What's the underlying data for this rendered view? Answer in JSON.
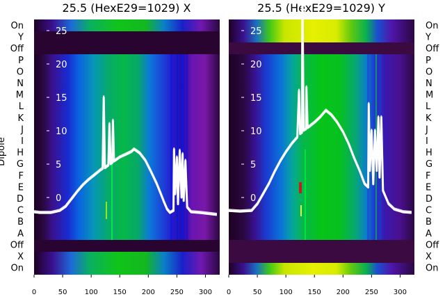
{
  "chart_data": [
    {
      "type": "heatmap",
      "title": "25.5 (HexE29=1029) X",
      "ylabel": "Dipole",
      "xticks": [
        0,
        50,
        100,
        150,
        200,
        250,
        300
      ],
      "xlim": [
        0,
        325
      ],
      "yticks": [
        0,
        5,
        10,
        15,
        20,
        25
      ],
      "ylim": [
        -11.5,
        28
      ],
      "dipole_labels": [
        "On",
        "Y",
        "Off",
        "P",
        "O",
        "N",
        "M",
        "L",
        "K",
        "J",
        "I",
        "H",
        "G",
        "F",
        "E",
        "D",
        "C",
        "B",
        "A",
        "Off",
        "X",
        "On"
      ],
      "heatmap_colors": {
        "low": "#2a002e",
        "mid": "#0a52d9",
        "high": "#06c410",
        "peak": "#e6f000"
      },
      "profile": [
        {
          "x": 0,
          "y": -2.2
        },
        {
          "x": 10,
          "y": -2.3
        },
        {
          "x": 30,
          "y": -2.3
        },
        {
          "x": 45,
          "y": -2.0
        },
        {
          "x": 55,
          "y": -1.4
        },
        {
          "x": 65,
          "y": -0.3
        },
        {
          "x": 75,
          "y": 0.8
        },
        {
          "x": 85,
          "y": 1.8
        },
        {
          "x": 95,
          "y": 2.6
        },
        {
          "x": 105,
          "y": 3.3
        },
        {
          "x": 115,
          "y": 4.0
        },
        {
          "x": 120,
          "y": 4.3
        },
        {
          "x": 122,
          "y": 15
        },
        {
          "x": 124,
          "y": 4.4
        },
        {
          "x": 130,
          "y": 4.8
        },
        {
          "x": 132,
          "y": 11
        },
        {
          "x": 134,
          "y": 5.0
        },
        {
          "x": 137,
          "y": 5.2
        },
        {
          "x": 138,
          "y": 11.5
        },
        {
          "x": 140,
          "y": 5.4
        },
        {
          "x": 150,
          "y": 6.0
        },
        {
          "x": 160,
          "y": 6.4
        },
        {
          "x": 170,
          "y": 6.8
        },
        {
          "x": 175,
          "y": 7.2
        },
        {
          "x": 185,
          "y": 6.6
        },
        {
          "x": 195,
          "y": 5.5
        },
        {
          "x": 205,
          "y": 3.8
        },
        {
          "x": 215,
          "y": 2.0
        },
        {
          "x": 222,
          "y": 0.5
        },
        {
          "x": 228,
          "y": -0.8
        },
        {
          "x": 233,
          "y": -1.8
        },
        {
          "x": 238,
          "y": -2.3
        },
        {
          "x": 244,
          "y": -2.0
        },
        {
          "x": 245,
          "y": 7.2
        },
        {
          "x": 247,
          "y": 0.5
        },
        {
          "x": 250,
          "y": 6.0
        },
        {
          "x": 252,
          "y": -1.0
        },
        {
          "x": 255,
          "y": 7.0
        },
        {
          "x": 258,
          "y": 0.0
        },
        {
          "x": 260,
          "y": 6.5
        },
        {
          "x": 262,
          "y": -0.5
        },
        {
          "x": 265,
          "y": 5.5
        },
        {
          "x": 268,
          "y": -1.5
        },
        {
          "x": 275,
          "y": -2.2
        },
        {
          "x": 290,
          "y": -2.3
        },
        {
          "x": 310,
          "y": -2.5
        },
        {
          "x": 320,
          "y": -2.6
        }
      ]
    },
    {
      "type": "heatmap",
      "title": "25.5 (HexE29=1029) Y",
      "ylabel": "",
      "xticks": [
        0,
        50,
        100,
        150,
        200,
        250,
        300
      ],
      "xlim": [
        0,
        325
      ],
      "yticks": [
        0,
        5,
        10,
        15,
        20,
        25
      ],
      "ylim": [
        -11.5,
        28
      ],
      "dipole_labels": [
        "On",
        "Y",
        "Off",
        "P",
        "O",
        "N",
        "M",
        "L",
        "K",
        "J",
        "I",
        "H",
        "G",
        "F",
        "E",
        "D",
        "C",
        "B",
        "A",
        "Off",
        "X",
        "On"
      ],
      "heatmap_colors": {
        "low": "#2a002e",
        "mid": "#0a52d9",
        "high": "#06c410",
        "peak": "#e6f000"
      },
      "profile": [
        {
          "x": 0,
          "y": -2.0
        },
        {
          "x": 20,
          "y": -2.1
        },
        {
          "x": 40,
          "y": -2.0
        },
        {
          "x": 50,
          "y": -1.0
        },
        {
          "x": 60,
          "y": 0.5
        },
        {
          "x": 70,
          "y": 2.0
        },
        {
          "x": 80,
          "y": 3.8
        },
        {
          "x": 90,
          "y": 5.4
        },
        {
          "x": 100,
          "y": 6.8
        },
        {
          "x": 110,
          "y": 8.0
        },
        {
          "x": 120,
          "y": 9.0
        },
        {
          "x": 123,
          "y": 16
        },
        {
          "x": 125,
          "y": 9.5
        },
        {
          "x": 128,
          "y": 9.7
        },
        {
          "x": 129,
          "y": 31
        },
        {
          "x": 131,
          "y": 10
        },
        {
          "x": 135,
          "y": 10.2
        },
        {
          "x": 136,
          "y": 16.5
        },
        {
          "x": 138,
          "y": 10.4
        },
        {
          "x": 150,
          "y": 11.2
        },
        {
          "x": 160,
          "y": 12.0
        },
        {
          "x": 170,
          "y": 13.0
        },
        {
          "x": 180,
          "y": 12.3
        },
        {
          "x": 190,
          "y": 11.2
        },
        {
          "x": 200,
          "y": 9.8
        },
        {
          "x": 210,
          "y": 8.0
        },
        {
          "x": 220,
          "y": 5.8
        },
        {
          "x": 230,
          "y": 3.8
        },
        {
          "x": 238,
          "y": 2.0
        },
        {
          "x": 244,
          "y": 1.5
        },
        {
          "x": 245,
          "y": 14
        },
        {
          "x": 247,
          "y": 4
        },
        {
          "x": 250,
          "y": 10
        },
        {
          "x": 253,
          "y": 2
        },
        {
          "x": 256,
          "y": 10
        },
        {
          "x": 259,
          "y": 4
        },
        {
          "x": 262,
          "y": 12
        },
        {
          "x": 264,
          "y": 3
        },
        {
          "x": 267,
          "y": 12
        },
        {
          "x": 270,
          "y": 1.0
        },
        {
          "x": 280,
          "y": -1.0
        },
        {
          "x": 290,
          "y": -1.8
        },
        {
          "x": 305,
          "y": -2.2
        },
        {
          "x": 320,
          "y": -2.3
        }
      ]
    }
  ]
}
